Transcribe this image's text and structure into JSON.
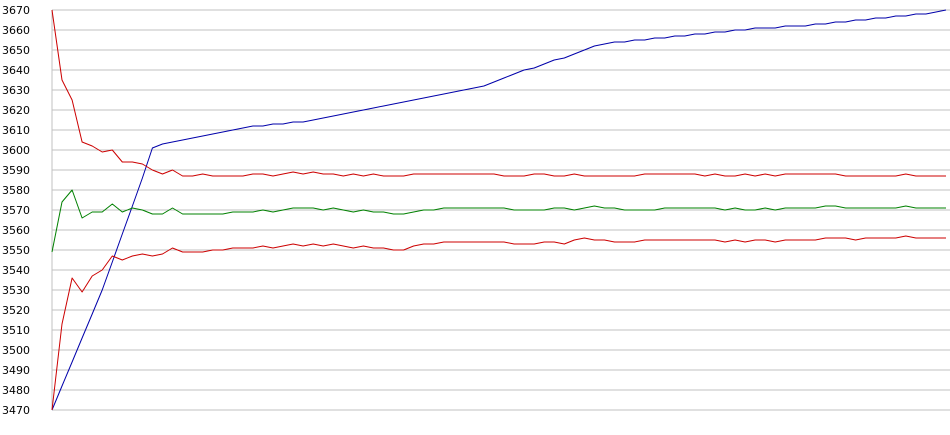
{
  "chart_data": {
    "type": "line",
    "title": "",
    "xlabel": "",
    "ylabel": "",
    "ylim": [
      3470,
      3670
    ],
    "yticks": [
      "3670",
      "3660",
      "3650",
      "3640",
      "3630",
      "3620",
      "3610",
      "3600",
      "3590",
      "3580",
      "3570",
      "3560",
      "3550",
      "3540",
      "3530",
      "3520",
      "3510",
      "3500",
      "3490",
      "3480",
      "3470"
    ],
    "grid": true,
    "x": [
      0,
      1,
      2,
      3,
      4,
      5,
      6,
      7,
      8,
      9,
      10,
      11,
      12,
      13,
      14,
      15,
      16,
      17,
      18,
      19,
      20,
      21,
      22,
      23,
      24,
      25,
      26,
      27,
      28,
      29,
      30,
      31,
      32,
      33,
      34,
      35,
      36,
      37,
      38,
      39,
      40,
      41,
      42,
      43,
      44,
      45,
      46,
      47,
      48,
      49,
      50,
      51,
      52,
      53,
      54,
      55,
      56,
      57,
      58,
      59,
      60,
      61,
      62,
      63,
      64,
      65,
      66,
      67,
      68,
      69,
      70,
      71,
      72,
      73,
      74,
      75,
      76,
      77,
      78,
      79,
      80,
      81,
      82,
      83,
      84,
      85,
      86,
      87,
      88,
      89
    ],
    "series": [
      {
        "color": "#0000aa",
        "values": [
          3470,
          3482,
          3494,
          3506,
          3518,
          3530,
          3544,
          3558,
          3572,
          3586,
          3601,
          3603,
          3604,
          3605,
          3606,
          3607,
          3608,
          3609,
          3610,
          3611,
          3612,
          3612,
          3613,
          3613,
          3614,
          3614,
          3615,
          3616,
          3617,
          3618,
          3619,
          3620,
          3621,
          3622,
          3623,
          3624,
          3625,
          3626,
          3627,
          3628,
          3629,
          3630,
          3631,
          3632,
          3634,
          3636,
          3638,
          3640,
          3641,
          3643,
          3645,
          3646,
          3648,
          3650,
          3652,
          3653,
          3654,
          3654,
          3655,
          3655,
          3656,
          3656,
          3657,
          3657,
          3658,
          3658,
          3659,
          3659,
          3660,
          3660,
          3661,
          3661,
          3661,
          3662,
          3662,
          3662,
          3663,
          3663,
          3664,
          3664,
          3665,
          3665,
          3666,
          3666,
          3667,
          3667,
          3668,
          3668,
          3669,
          3670
        ]
      },
      {
        "color": "#cc0000",
        "values": [
          3670,
          3635,
          3625,
          3604,
          3602,
          3599,
          3600,
          3594,
          3594,
          3593,
          3590,
          3588,
          3590,
          3587,
          3587,
          3588,
          3587,
          3587,
          3587,
          3587,
          3588,
          3588,
          3587,
          3588,
          3589,
          3588,
          3589,
          3588,
          3588,
          3587,
          3588,
          3587,
          3588,
          3587,
          3587,
          3587,
          3588,
          3588,
          3588,
          3588,
          3588,
          3588,
          3588,
          3588,
          3588,
          3587,
          3587,
          3587,
          3588,
          3588,
          3587,
          3587,
          3588,
          3587,
          3587,
          3587,
          3587,
          3587,
          3587,
          3588,
          3588,
          3588,
          3588,
          3588,
          3588,
          3587,
          3588,
          3587,
          3587,
          3588,
          3587,
          3588,
          3587,
          3588,
          3588,
          3588,
          3588,
          3588,
          3588,
          3587,
          3587,
          3587,
          3587,
          3587,
          3587,
          3588,
          3587,
          3587,
          3587,
          3587
        ]
      },
      {
        "color": "#008000",
        "values": [
          3549,
          3574,
          3580,
          3566,
          3569,
          3569,
          3573,
          3569,
          3571,
          3570,
          3568,
          3568,
          3571,
          3568,
          3568,
          3568,
          3568,
          3568,
          3569,
          3569,
          3569,
          3570,
          3569,
          3570,
          3571,
          3571,
          3571,
          3570,
          3571,
          3570,
          3569,
          3570,
          3569,
          3569,
          3568,
          3568,
          3569,
          3570,
          3570,
          3571,
          3571,
          3571,
          3571,
          3571,
          3571,
          3571,
          3570,
          3570,
          3570,
          3570,
          3571,
          3571,
          3570,
          3571,
          3572,
          3571,
          3571,
          3570,
          3570,
          3570,
          3570,
          3571,
          3571,
          3571,
          3571,
          3571,
          3571,
          3570,
          3571,
          3570,
          3570,
          3571,
          3570,
          3571,
          3571,
          3571,
          3571,
          3572,
          3572,
          3571,
          3571,
          3571,
          3571,
          3571,
          3571,
          3572,
          3571,
          3571,
          3571,
          3571
        ]
      },
      {
        "color": "#cc0000",
        "values": [
          3470,
          3513,
          3536,
          3529,
          3537,
          3540,
          3547,
          3545,
          3547,
          3548,
          3547,
          3548,
          3551,
          3549,
          3549,
          3549,
          3550,
          3550,
          3551,
          3551,
          3551,
          3552,
          3551,
          3552,
          3553,
          3552,
          3553,
          3552,
          3553,
          3552,
          3551,
          3552,
          3551,
          3551,
          3550,
          3550,
          3552,
          3553,
          3553,
          3554,
          3554,
          3554,
          3554,
          3554,
          3554,
          3554,
          3553,
          3553,
          3553,
          3554,
          3554,
          3553,
          3555,
          3556,
          3555,
          3555,
          3554,
          3554,
          3554,
          3555,
          3555,
          3555,
          3555,
          3555,
          3555,
          3555,
          3555,
          3554,
          3555,
          3554,
          3555,
          3555,
          3554,
          3555,
          3555,
          3555,
          3555,
          3556,
          3556,
          3556,
          3555,
          3556,
          3556,
          3556,
          3556,
          3557,
          3556,
          3556,
          3556,
          3556
        ]
      }
    ]
  }
}
